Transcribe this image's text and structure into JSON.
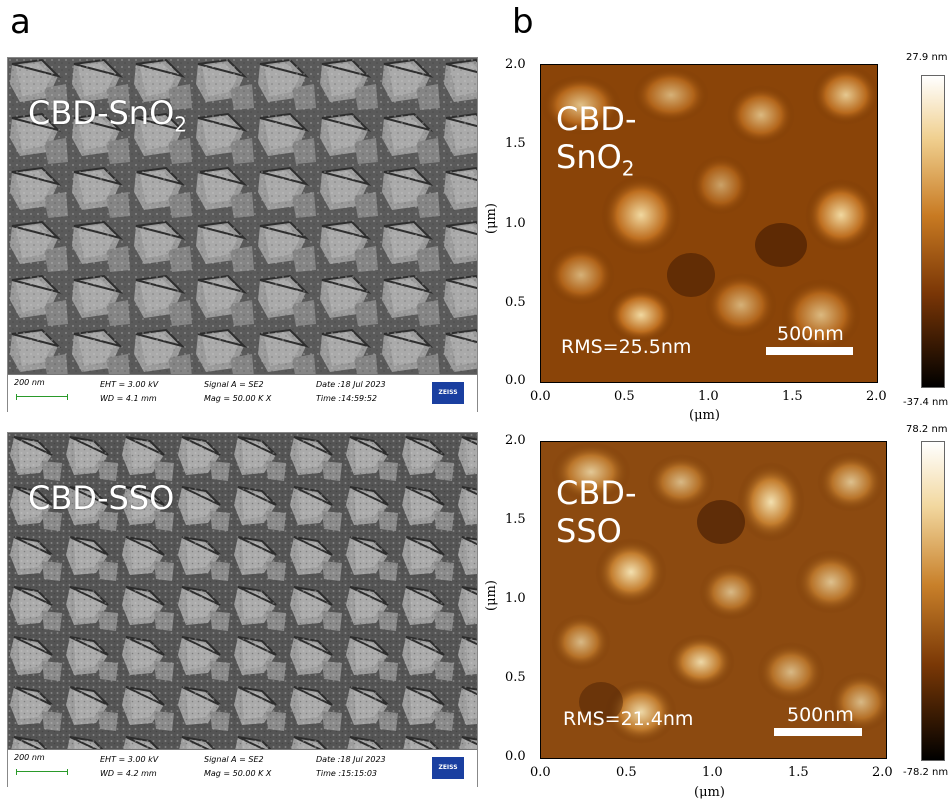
{
  "panels": {
    "a": {
      "letter": "a"
    },
    "b": {
      "letter": "b"
    }
  },
  "sem": [
    {
      "label_main": "CBD-SnO",
      "label_sub": "2",
      "scale": "200 nm",
      "eht": "EHT = 3.00 kV",
      "wd": "WD = 4.1 mm",
      "signal": "Signal A = SE2",
      "mag": "Mag = 50.00 K X",
      "date": "Date :18 Jul 2023",
      "time": "Time :14:59:52",
      "brand": "ZEISS"
    },
    {
      "label_main": "CBD-SSO",
      "label_sub": "",
      "scale": "200 nm",
      "eht": "EHT = 3.00 kV",
      "wd": "WD = 4.2 mm",
      "signal": "Signal A = SE2",
      "mag": "Mag = 50.00 K X",
      "date": "Date :18 Jul 2023",
      "time": "Time :15:15:03",
      "brand": "ZEISS"
    }
  ],
  "afm": [
    {
      "label_main": "CBD-SnO",
      "label_sub": "2",
      "rms": "RMS=25.5nm",
      "scale": "500nm",
      "x_ticks": [
        "0.0",
        "0.5",
        "1.0",
        "1.5",
        "2.0"
      ],
      "y_ticks": [
        "2.0",
        "1.5",
        "1.0",
        "0.5",
        "0.0"
      ],
      "x_title": "(μm)",
      "y_title": "(μm)",
      "cb_max": "27.9 nm",
      "cb_min": "-37.4 nm"
    },
    {
      "label_main": "CBD-SSO",
      "label_sub": "",
      "rms": "RMS=21.4nm",
      "scale": "500nm",
      "x_ticks": [
        "0.0",
        "0.5",
        "1.0",
        "1.5",
        "2.0"
      ],
      "y_ticks": [
        "2.0",
        "1.5",
        "1.0",
        "0.5",
        "0.0"
      ],
      "x_title": "(μm)",
      "y_title": "(μm)",
      "cb_max": "78.2 nm",
      "cb_min": "-78.2 nm"
    }
  ],
  "colors": {
    "afm_dark": "#2a1000",
    "afm_mid": "#a8560e",
    "afm_light": "#f0d090",
    "sem_gray": "#6a6a6a"
  }
}
